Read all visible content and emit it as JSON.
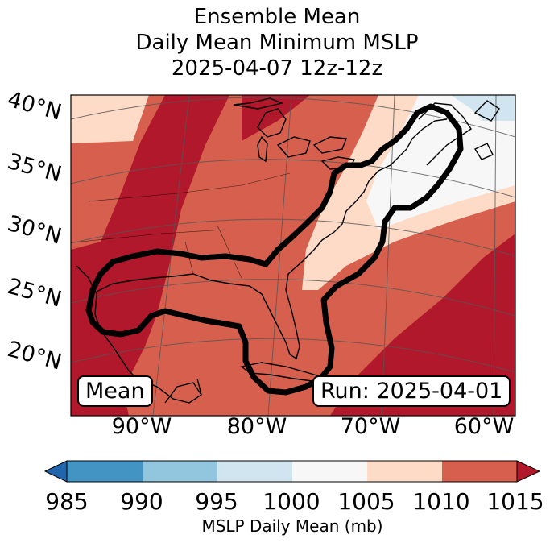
{
  "title": {
    "line1": "Ensemble Mean",
    "line2": "Daily Mean Minimum MSLP",
    "line3": "2025-04-07 12z-12z"
  },
  "map": {
    "lat_labels": [
      "40°N",
      "35°N",
      "30°N",
      "25°N",
      "20°N"
    ],
    "lon_labels": [
      "90°W",
      "80°W",
      "70°W",
      "60°W"
    ],
    "left_box": "Mean",
    "run_box": "Run: 2025-04-01"
  },
  "colorbar": {
    "label": "MSLP Daily Mean (mb)",
    "ticks": [
      "985",
      "990",
      "995",
      "1000",
      "1005",
      "1010",
      "1015"
    ],
    "colors": {
      "below": "#2166ac",
      "c985_990": "#4393c3",
      "c990_995": "#92c5de",
      "c995_1000": "#d1e5f0",
      "c1000_1005": "#f7f7f7",
      "c1005_1010": "#fddbc7",
      "c1010_1015": "#d6604d",
      "above": "#b2182b"
    }
  }
}
